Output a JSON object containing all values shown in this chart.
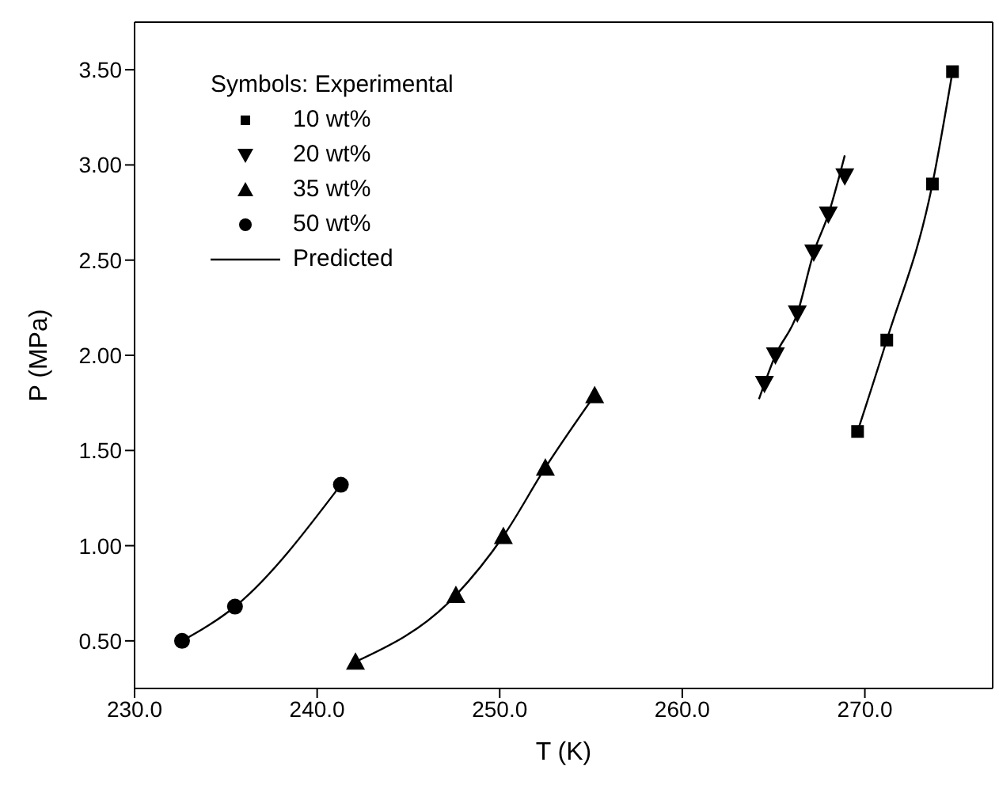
{
  "chart_data": {
    "type": "scatter",
    "xlabel": "T (K)",
    "ylabel": "P (MPa)",
    "legend_title": "Symbols: Experimental",
    "xlim": [
      230,
      277
    ],
    "xticks": [
      {
        "value": 230,
        "label": "230.0"
      },
      {
        "value": 240,
        "label": "240.0"
      },
      {
        "value": 250,
        "label": "250.0"
      },
      {
        "value": 260,
        "label": "260.0"
      },
      {
        "value": 270,
        "label": "270.0"
      }
    ],
    "ylim": [
      0.25,
      3.75
    ],
    "yticks": [
      {
        "value": 0.5,
        "label": "0.50"
      },
      {
        "value": 1.0,
        "label": "1.00"
      },
      {
        "value": 1.5,
        "label": "1.50"
      },
      {
        "value": 2.0,
        "label": "2.00"
      },
      {
        "value": 2.5,
        "label": "2.50"
      },
      {
        "value": 3.0,
        "label": "3.00"
      },
      {
        "value": 3.5,
        "label": "3.50"
      }
    ],
    "grid": false,
    "legend": "top left",
    "series": [
      {
        "name": "10 wt%",
        "marker": "square",
        "color": "#000000",
        "x": [
          269.6,
          271.2,
          273.7,
          274.8
        ],
        "values": [
          1.6,
          2.08,
          2.9,
          3.49
        ]
      },
      {
        "name": "20 wt%",
        "marker": "triangle-down",
        "color": "#000000",
        "x": [
          264.5,
          265.1,
          266.3,
          267.2,
          268.0,
          268.9
        ],
        "values": [
          1.85,
          2.0,
          2.22,
          2.54,
          2.74,
          2.94
        ]
      },
      {
        "name": "35 wt%",
        "marker": "triangle",
        "color": "#000000",
        "x": [
          242.1,
          247.6,
          250.2,
          252.5,
          255.2
        ],
        "values": [
          0.39,
          0.74,
          1.05,
          1.41,
          1.79
        ]
      },
      {
        "name": "50 wt%",
        "marker": "circle",
        "color": "#000000",
        "x": [
          232.6,
          235.5,
          241.3
        ],
        "values": [
          0.5,
          0.68,
          1.32
        ]
      },
      {
        "name": "Predicted",
        "type": "line",
        "marker": "none",
        "line_style": "solid",
        "color": "#000000",
        "x": [
          232.6,
          235.5,
          241.3,
          241.4,
          242.1,
          247.6,
          250.2,
          252.5,
          255.2,
          255.3,
          264.2,
          265.1,
          266.3,
          267.2,
          268.0,
          268.9,
          269.0,
          269.6,
          271.2,
          273.7,
          274.8
        ],
        "values": [
          0.5,
          0.68,
          1.32,
          null,
          0.39,
          0.74,
          1.05,
          1.41,
          1.79,
          null,
          1.77,
          2.0,
          2.22,
          2.54,
          2.74,
          3.05,
          null,
          1.6,
          2.08,
          2.9,
          3.49
        ]
      }
    ]
  }
}
